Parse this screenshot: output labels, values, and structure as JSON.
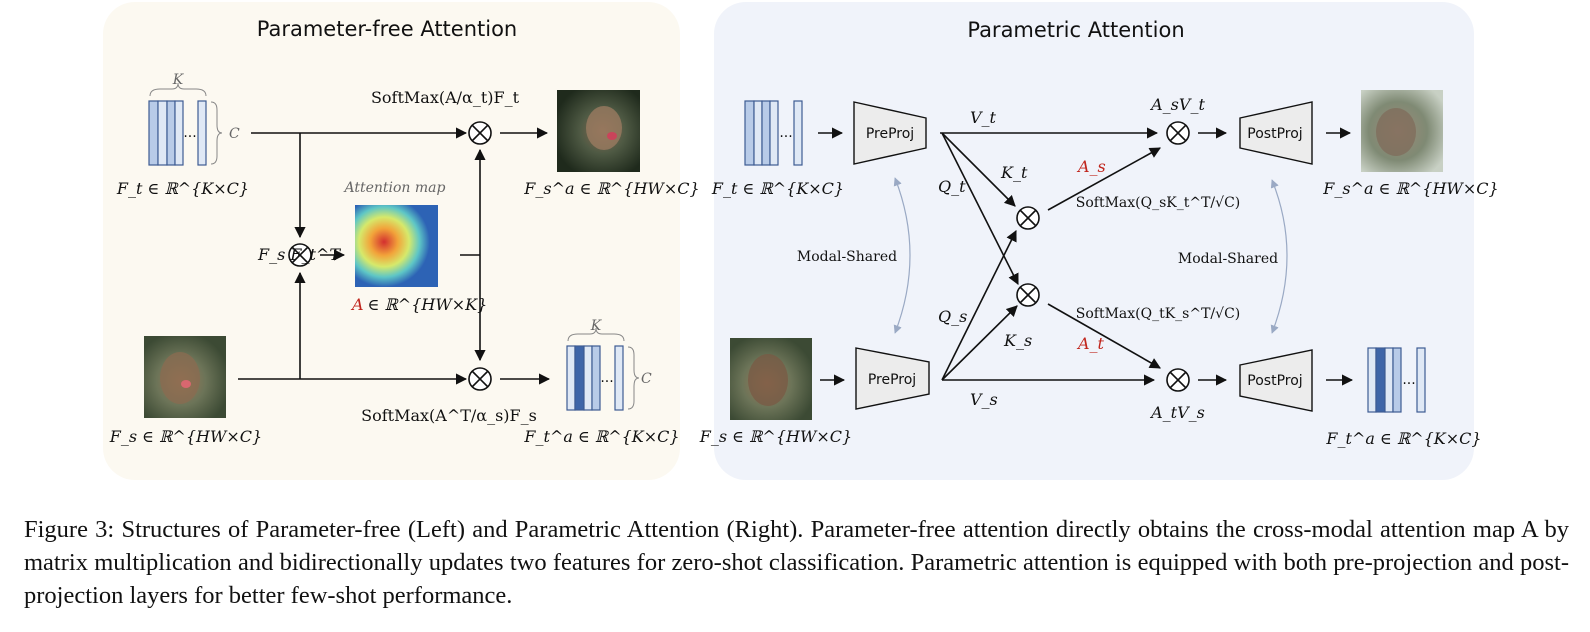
{
  "left_panel": {
    "title": "Parameter-free Attention",
    "k_label": "K",
    "c_label": "C",
    "dots": "...",
    "ft_label": "F_t ∈ ℝ^{K×C}",
    "fs_label": "F_s ∈ ℝ^{HW×C}",
    "fsft_label": "F_s F_t^T",
    "attention_map_label": "Attention map",
    "a_label": "A ∈ ℝ^{HW×K}",
    "a_symbol": "A",
    "a_rest": "∈ ℝ^{HW×K}",
    "softmax_top": "SoftMax(A/α_t)F_t",
    "softmax_bottom": "SoftMax(A^T/α_s)F_s",
    "fsa_label": "F_s^a ∈ ℝ^{HW×C}",
    "fta_label": "F_t^a ∈ ℝ^{K×C}"
  },
  "right_panel": {
    "title": "Parametric Attention",
    "preproj": "PreProj",
    "postproj": "PostProj",
    "modal_shared": "Modal-Shared",
    "vt": "V_t",
    "vs": "V_s",
    "kt": "K_t",
    "ks": "K_s",
    "qt": "Q_t",
    "qs": "Q_s",
    "as": "A_s",
    "at": "A_t",
    "asvt": "A_sV_t",
    "atvs": "A_tV_s",
    "softmax_top": "SoftMax(Q_sK_t^T/√C)",
    "softmax_bottom": "SoftMax(Q_tK_s^T/√C)",
    "ft_label": "F_t ∈ ℝ^{K×C}",
    "fs_label": "F_s ∈ ℝ^{HW×C}",
    "fsa_label": "F_s^a ∈ ℝ^{HW×C}",
    "fta_label": "F_t^a ∈ ℝ^{K×C}",
    "dots": "..."
  },
  "caption": "Figure 3: Structures of Parameter-free (Left) and Parametric Attention (Right). Parameter-free attention directly obtains the cross-modal attention map A by matrix multiplication and bidirectionally updates two features for zero-shot classification. Parametric attention is equipped with both pre-projection and post-projection layers for better few-shot performance.",
  "colors": {
    "left_bg": "#fcf9f1",
    "right_bg": "#f0f3fa",
    "feature_light": "#dfe8f5",
    "feature_mid": "#b8cbe8",
    "feature_dark": "#3e65a8",
    "proj_fill": "#ececec",
    "accent_red": "#c0261d",
    "modal_arrow": "#9aa9c4"
  }
}
